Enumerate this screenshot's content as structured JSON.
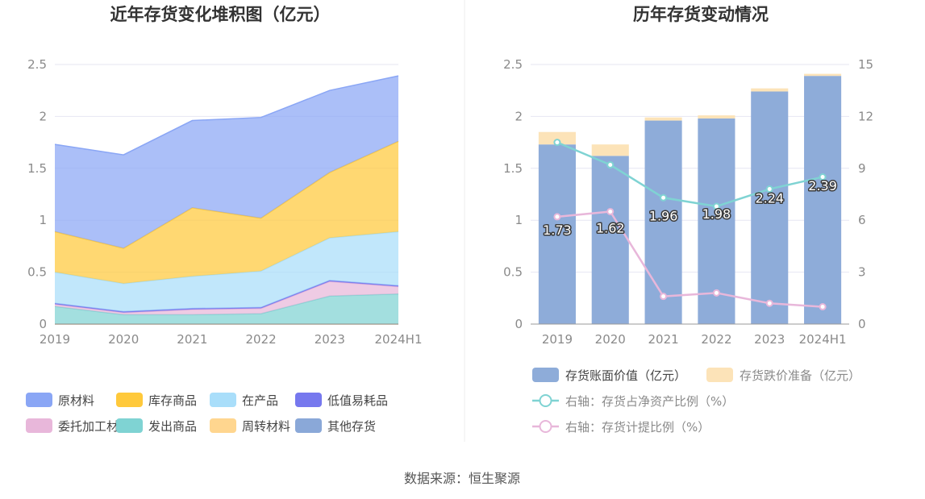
{
  "left_chart": {
    "chart_data": {
      "type": "area",
      "stacked": true,
      "title": "近年存货变化堆积图（亿元）",
      "categories": [
        "2019",
        "2020",
        "2021",
        "2022",
        "2023",
        "2024H1"
      ],
      "ylim": [
        0,
        2.5
      ],
      "yticks": [
        "0",
        "0.5",
        "1",
        "1.5",
        "2",
        "2.5"
      ],
      "grid": true,
      "legend_position": "bottom",
      "series": [
        {
          "name": "原材料",
          "color": "#8aa6f5",
          "values": [
            0.84,
            0.9,
            0.84,
            0.97,
            0.79,
            0.63
          ]
        },
        {
          "name": "库存商品",
          "color": "#ffc93b",
          "values": [
            0.39,
            0.34,
            0.66,
            0.51,
            0.63,
            0.87
          ]
        },
        {
          "name": "在产品",
          "color": "#a9defa",
          "values": [
            0.3,
            0.27,
            0.31,
            0.35,
            0.41,
            0.52
          ]
        },
        {
          "name": "低值易耗品",
          "color": "#7678ee",
          "values": [
            0.01,
            0.01,
            0.01,
            0.01,
            0.01,
            0.01
          ]
        },
        {
          "name": "委托加工材料",
          "color": "#e8b7da",
          "values": [
            0.02,
            0.02,
            0.05,
            0.05,
            0.14,
            0.07
          ]
        },
        {
          "name": "发出商品",
          "color": "#7fd3d3",
          "values": [
            0.17,
            0.09,
            0.09,
            0.1,
            0.27,
            0.29
          ]
        },
        {
          "name": "周转材料",
          "color": "#ffd68f",
          "values": [
            0,
            0,
            0,
            0,
            0,
            0
          ]
        },
        {
          "name": "其他存货",
          "color": "#8aa8d8",
          "values": [
            0,
            0,
            0,
            0,
            0,
            0
          ]
        }
      ]
    }
  },
  "right_chart": {
    "chart_data": {
      "type": "bar",
      "stacked": true,
      "title": "历年存货变动情况",
      "categories": [
        "2019",
        "2020",
        "2021",
        "2022",
        "2023",
        "2024H1"
      ],
      "ylim": [
        0,
        2.5
      ],
      "yticks": [
        "0",
        "0.5",
        "1",
        "1.5",
        "2",
        "2.5"
      ],
      "y2lim": [
        0,
        15
      ],
      "y2ticks": [
        "0",
        "3",
        "6",
        "9",
        "12",
        "15"
      ],
      "grid": true,
      "legend_position": "bottom",
      "series": [
        {
          "name": "存货账面价值（亿元）",
          "color": "#8eacd9",
          "kind": "bar",
          "values": [
            1.73,
            1.62,
            1.96,
            1.98,
            2.24,
            2.39
          ],
          "labels": [
            "1.73",
            "1.62",
            "1.96",
            "1.98",
            "2.24",
            "2.39"
          ]
        },
        {
          "name": "存货跌价准备（亿元）",
          "color": "#fce3b8",
          "kind": "bar",
          "values": [
            0.12,
            0.11,
            0.03,
            0.03,
            0.03,
            0.02
          ]
        },
        {
          "name": "右轴：存货占净资产比例（%）",
          "color": "#7fd3d3",
          "kind": "line",
          "axis": "right",
          "values": [
            10.5,
            9.2,
            7.3,
            6.8,
            7.8,
            8.5
          ]
        },
        {
          "name": "右轴：存货计提比例（%）",
          "color": "#e8b7da",
          "kind": "line",
          "axis": "right",
          "values": [
            6.2,
            6.5,
            1.6,
            1.8,
            1.2,
            1.0
          ]
        }
      ]
    }
  },
  "footer": {
    "source": "数据来源：恒生聚源"
  }
}
